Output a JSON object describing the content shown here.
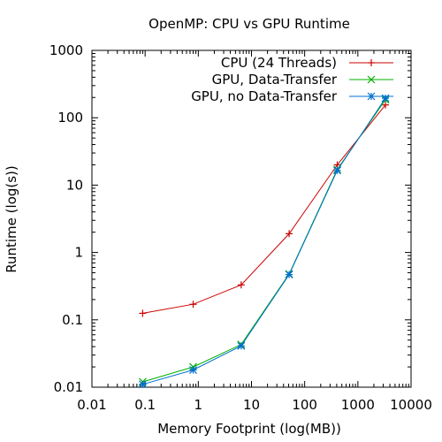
{
  "chart_data": {
    "type": "line",
    "title": "OpenMP: CPU vs GPU Runtime",
    "xlabel": "Memory Footprint (log(MB))",
    "ylabel": "Runtime (log(s))",
    "x_scale": "log",
    "y_scale": "log",
    "xlim": [
      0.01,
      10000
    ],
    "ylim": [
      0.01,
      1000
    ],
    "x_ticks": [
      "0.01",
      "0.1",
      "1",
      "10",
      "100",
      "1000",
      "10000"
    ],
    "y_ticks": [
      "0.01",
      "0.1",
      "1",
      "10",
      "100",
      "1000"
    ],
    "grid": false,
    "legend_position": "top-right",
    "series": [
      {
        "name": "CPU (24 Threads)",
        "color": "#cc0000",
        "marker": "plus",
        "x": [
          0.09,
          0.8,
          6.4,
          51,
          410,
          3300
        ],
        "y": [
          0.125,
          0.17,
          0.33,
          1.9,
          20,
          155
        ]
      },
      {
        "name": "GPU, Data-Transfer",
        "color": "#00b000",
        "marker": "cross",
        "x": [
          0.09,
          0.8,
          6.4,
          51,
          410,
          3300
        ],
        "y": [
          0.012,
          0.02,
          0.043,
          0.48,
          17,
          185
        ]
      },
      {
        "name": "GPU, no Data-Transfer",
        "color": "#0070d0",
        "marker": "star",
        "x": [
          0.09,
          0.8,
          6.4,
          51,
          410,
          3300
        ],
        "y": [
          0.011,
          0.018,
          0.041,
          0.47,
          16.5,
          195
        ]
      }
    ]
  }
}
